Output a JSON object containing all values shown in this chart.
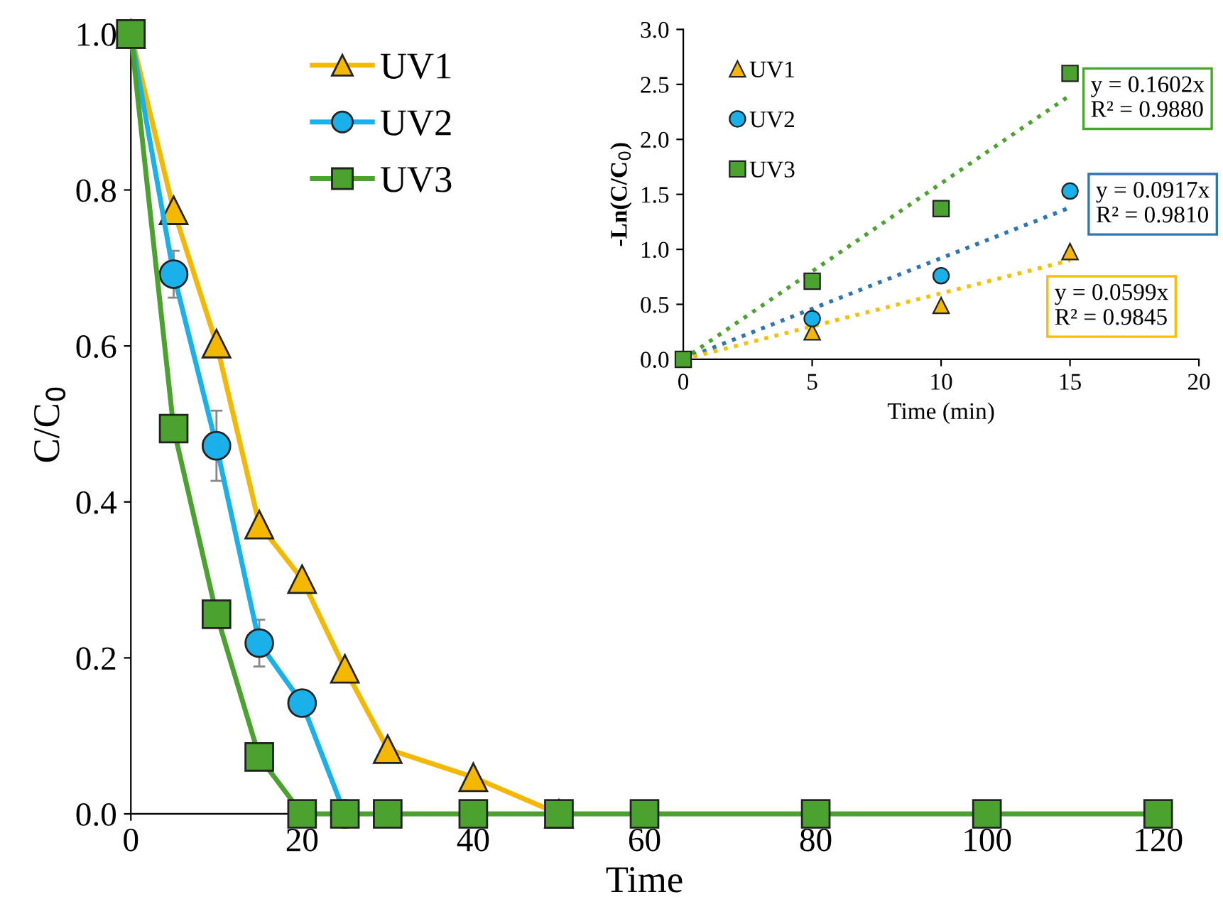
{
  "chart_data": [
    {
      "type": "line",
      "xlabel": "Time",
      "ylabel": "C/C$_{0}$",
      "xlim": [
        0,
        120
      ],
      "ylim": [
        0,
        1.0
      ],
      "xticks": [
        0,
        20,
        40,
        60,
        80,
        100,
        120
      ],
      "yticks": [
        {
          "value": 0,
          "label": "0.0"
        },
        0.2,
        0.4,
        0.6,
        0.8,
        {
          "value": 1.0,
          "label": "1.0"
        }
      ],
      "grid": false,
      "legend": "top",
      "line_style": "solid",
      "series": [
        {
          "name": "UV1",
          "color": "#f5b800",
          "marker": "triangle",
          "x": [
            0,
            5,
            10,
            15,
            20,
            25,
            30,
            40,
            50
          ],
          "values": [
            1.0,
            0.774,
            0.603,
            0.371,
            0.301,
            0.186,
            0.083,
            0.047,
            0.0
          ]
        },
        {
          "name": "UV2",
          "color": "#1ab0ea",
          "marker": "circle",
          "x": [
            0,
            5,
            10,
            15,
            20,
            25
          ],
          "values": [
            1.0,
            0.692,
            0.472,
            0.219,
            0.142,
            0.0
          ],
          "errors": [
            null,
            0.03,
            0.045,
            0.03,
            null,
            null
          ]
        },
        {
          "name": "UV3",
          "color": "#4ca22f",
          "marker": "square",
          "x": [
            0,
            5,
            10,
            15,
            20,
            25,
            30,
            40,
            50,
            60,
            80,
            100,
            120
          ],
          "values": [
            1.0,
            0.494,
            0.256,
            0.073,
            0.0,
            0.0,
            0.0,
            0.0,
            0.0,
            0.0,
            0.0,
            0.0,
            0.0
          ]
        }
      ]
    },
    {
      "type": "scatter",
      "xlabel": "Time (min)",
      "ylabel": "-Ln(C/C$_{0}$)",
      "xlim": [
        0,
        20
      ],
      "ylim": [
        0,
        3.0
      ],
      "xticks": [
        0,
        5,
        10,
        15,
        20
      ],
      "yticks": [
        {
          "value": 0,
          "label": "0.0"
        },
        0.5,
        {
          "value": 1.0,
          "label": "1.0"
        },
        1.5,
        {
          "value": 2.0,
          "label": "2.0"
        },
        2.5,
        {
          "value": 3.0,
          "label": "3.0"
        }
      ],
      "grid": false,
      "legend": "top left",
      "annotations": [
        "y = 0.1602x\nR² = 0.9880",
        "y = 0.0917x\nR² = 0.9810",
        "y = 0.0599x\nR² = 0.9845"
      ],
      "series": [
        {
          "name": "UV1",
          "color": "#f5b800",
          "marker": "triangle",
          "x": [
            5,
            10,
            15
          ],
          "values": [
            0.25,
            0.49,
            0.98
          ]
        },
        {
          "name": "UV2",
          "color": "#1ab0ea",
          "marker": "circle",
          "x": [
            5,
            10,
            15
          ],
          "values": [
            0.37,
            0.76,
            1.53
          ]
        },
        {
          "name": "UV3",
          "color": "#4ca22f",
          "marker": "square",
          "x": [
            0,
            5,
            10,
            15
          ],
          "values": [
            0.0,
            0.71,
            1.37,
            2.6
          ]
        },
        {
          "type": "line",
          "color": "#4ca22f",
          "line_style": "dotted",
          "marker": "none",
          "x": [
            0,
            15
          ],
          "values": [
            0,
            2.4
          ]
        },
        {
          "type": "line",
          "color": "#2e75b6",
          "line_style": "dotted",
          "marker": "none",
          "x": [
            0,
            15
          ],
          "values": [
            0,
            1.38
          ]
        },
        {
          "type": "line",
          "color": "#f5c000",
          "line_style": "dotted",
          "marker": "none",
          "x": [
            0,
            15
          ],
          "values": [
            0,
            0.9
          ]
        }
      ]
    }
  ]
}
